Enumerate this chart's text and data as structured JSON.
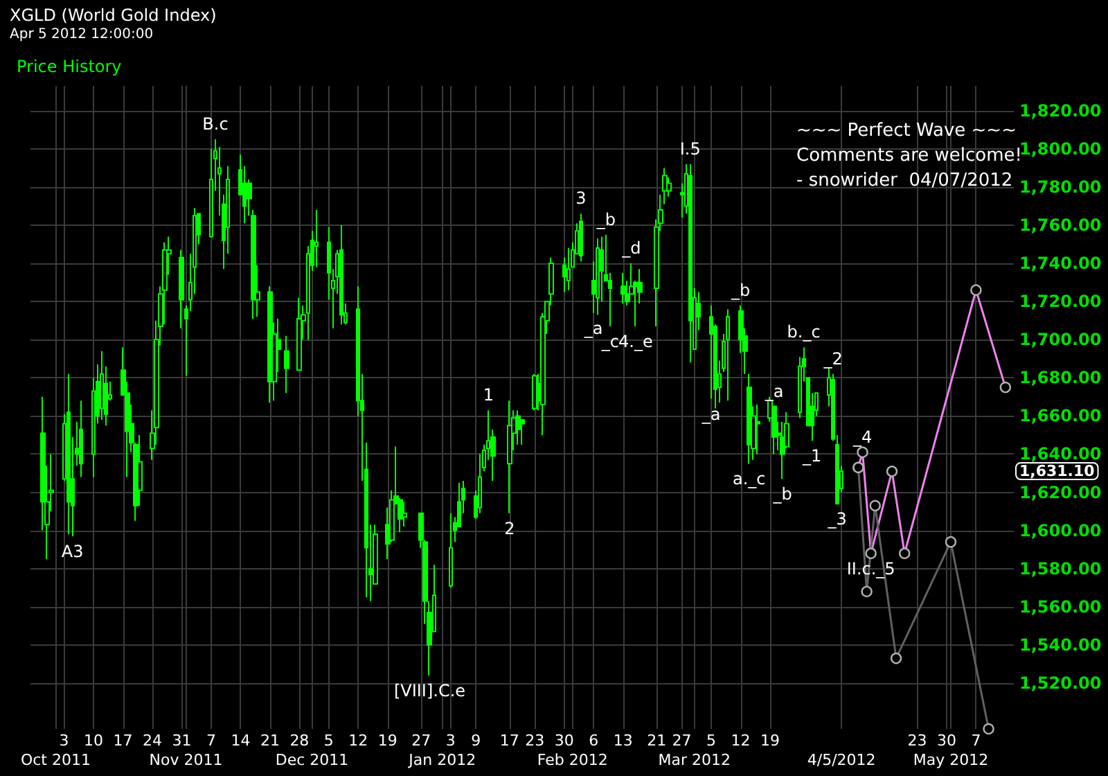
{
  "chart_data": {
    "type": "candlestick",
    "title": "XGLD (World Gold Index)",
    "subtitle": "Apr 5 2012 12:00:00",
    "series": [
      {
        "name": "Price History",
        "color": "#00ff00",
        "x": [
          "2011-09-28",
          "2011-09-29",
          "2011-09-30",
          "2011-10-03",
          "2011-10-04",
          "2011-10-05",
          "2011-10-06",
          "2011-10-07",
          "2011-10-10",
          "2011-10-11",
          "2011-10-12",
          "2011-10-13",
          "2011-10-14",
          "2011-10-17",
          "2011-10-18",
          "2011-10-19",
          "2011-10-20",
          "2011-10-21",
          "2011-10-24",
          "2011-10-25",
          "2011-10-26",
          "2011-10-27",
          "2011-10-28",
          "2011-10-31",
          "2011-11-01",
          "2011-11-02",
          "2011-11-03",
          "2011-11-04",
          "2011-11-07",
          "2011-11-08",
          "2011-11-09",
          "2011-11-10",
          "2011-11-11",
          "2011-11-14",
          "2011-11-15",
          "2011-11-16",
          "2011-11-17",
          "2011-11-18",
          "2011-11-21",
          "2011-11-22",
          "2011-11-23",
          "2011-11-25",
          "2011-11-28",
          "2011-11-29",
          "2011-11-30",
          "2011-12-01",
          "2011-12-02",
          "2011-12-05",
          "2011-12-06",
          "2011-12-07",
          "2011-12-08",
          "2011-12-09",
          "2011-12-12",
          "2011-12-13",
          "2011-12-14",
          "2011-12-15",
          "2011-12-16",
          "2011-12-19",
          "2011-12-20",
          "2011-12-21",
          "2011-12-22",
          "2011-12-23",
          "2011-12-27",
          "2011-12-28",
          "2011-12-29",
          "2011-12-30",
          "2012-01-03",
          "2012-01-04",
          "2012-01-05",
          "2012-01-06",
          "2012-01-09",
          "2012-01-10",
          "2012-01-11",
          "2012-01-12",
          "2012-01-13",
          "2012-01-17",
          "2012-01-18",
          "2012-01-19",
          "2012-01-20",
          "2012-01-23",
          "2012-01-24",
          "2012-01-25",
          "2012-01-26",
          "2012-01-27",
          "2012-01-30",
          "2012-01-31",
          "2012-02-01",
          "2012-02-02",
          "2012-02-03",
          "2012-02-06",
          "2012-02-07",
          "2012-02-08",
          "2012-02-09",
          "2012-02-10",
          "2012-02-13",
          "2012-02-14",
          "2012-02-15",
          "2012-02-16",
          "2012-02-17",
          "2012-02-21",
          "2012-02-22",
          "2012-02-23",
          "2012-02-24",
          "2012-02-27",
          "2012-02-28",
          "2012-02-29",
          "2012-03-01",
          "2012-03-02",
          "2012-03-05",
          "2012-03-06",
          "2012-03-07",
          "2012-03-08",
          "2012-03-09",
          "2012-03-12",
          "2012-03-13",
          "2012-03-14",
          "2012-03-15",
          "2012-03-16",
          "2012-03-19",
          "2012-03-20",
          "2012-03-21",
          "2012-03-22",
          "2012-03-23",
          "2012-03-26",
          "2012-03-27",
          "2012-03-28",
          "2012-03-29",
          "2012-03-30",
          "2012-04-02",
          "2012-04-03",
          "2012-04-04",
          "2012-04-05"
        ],
        "ohlc": [
          [
            1651,
            1670,
            1600,
            1615
          ],
          [
            1603,
            1634,
            1585,
            1615
          ],
          [
            1620,
            1640,
            1610,
            1621
          ],
          [
            1627,
            1661,
            1626,
            1656
          ],
          [
            1662,
            1682,
            1598,
            1615
          ],
          [
            1627,
            1649,
            1597,
            1613
          ],
          [
            1643,
            1657,
            1634,
            1640
          ],
          [
            1653,
            1668,
            1628,
            1635
          ],
          [
            1640,
            1680,
            1628,
            1673
          ],
          [
            1678,
            1687,
            1656,
            1660
          ],
          [
            1664,
            1694,
            1658,
            1682
          ],
          [
            1677,
            1686,
            1655,
            1661
          ],
          [
            1669,
            1678,
            1668,
            1671
          ],
          [
            1684,
            1696,
            1671,
            1671
          ],
          [
            1672,
            1678,
            1628,
            1652
          ],
          [
            1656,
            1666,
            1641,
            1646
          ],
          [
            1645,
            1646,
            1605,
            1613
          ],
          [
            1621,
            1650,
            1613,
            1636
          ],
          [
            1643,
            1663,
            1637,
            1651
          ],
          [
            1654,
            1710,
            1645,
            1700
          ],
          [
            1707,
            1728,
            1697,
            1724
          ],
          [
            1726,
            1751,
            1708,
            1747
          ],
          [
            1745,
            1754,
            1734,
            1747
          ],
          [
            1743,
            1747,
            1706,
            1721
          ],
          [
            1716,
            1718,
            1681,
            1711
          ],
          [
            1721,
            1745,
            1715,
            1730
          ],
          [
            1738,
            1769,
            1724,
            1765
          ],
          [
            1766,
            1766,
            1750,
            1755
          ],
          [
            1754,
            1800,
            1754,
            1784
          ],
          [
            1795,
            1805,
            1778,
            1799
          ],
          [
            1787,
            1801,
            1765,
            1790
          ],
          [
            1771,
            1776,
            1737,
            1752
          ],
          [
            1759,
            1791,
            1745,
            1784
          ],
          [
            1789,
            1797,
            1776,
            1776
          ],
          [
            1782,
            1791,
            1761,
            1770
          ],
          [
            1782,
            1784,
            1765,
            1774
          ],
          [
            1765,
            1768,
            1711,
            1721
          ],
          [
            1721,
            1739,
            1712,
            1725
          ],
          [
            1725,
            1728,
            1667,
            1678
          ],
          [
            1678,
            1709,
            1668,
            1703
          ],
          [
            1700,
            1711,
            1683,
            1695
          ],
          [
            1694,
            1702,
            1672,
            1685
          ],
          [
            1684,
            1722,
            1684,
            1711
          ],
          [
            1710,
            1718,
            1700,
            1713
          ],
          [
            1714,
            1749,
            1700,
            1745
          ],
          [
            1752,
            1757,
            1736,
            1739
          ],
          [
            1749,
            1768,
            1738,
            1751
          ],
          [
            1751,
            1759,
            1721,
            1735
          ],
          [
            1727,
            1737,
            1706,
            1731
          ],
          [
            1733,
            1747,
            1724,
            1745
          ],
          [
            1747,
            1760,
            1708,
            1713
          ],
          [
            1709,
            1719,
            1708,
            1714
          ],
          [
            1716,
            1728,
            1660,
            1668
          ],
          [
            1668,
            1682,
            1626,
            1663
          ],
          [
            1632,
            1646,
            1565,
            1591
          ],
          [
            1580,
            1603,
            1563,
            1577
          ],
          [
            1572,
            1603,
            1572,
            1598
          ],
          [
            1603,
            1612,
            1585,
            1593
          ],
          [
            1595,
            1621,
            1594,
            1616
          ],
          [
            1618,
            1644,
            1614,
            1614
          ],
          [
            1616,
            1617,
            1599,
            1606
          ],
          [
            1607,
            1615,
            1602,
            1609
          ],
          [
            1609,
            1609,
            1591,
            1595
          ],
          [
            1594,
            1595,
            1551,
            1563
          ],
          [
            1557,
            1563,
            1524,
            1540
          ],
          [
            1547,
            1582,
            1547,
            1566
          ],
          [
            1571,
            1609,
            1570,
            1591
          ],
          [
            1604,
            1607,
            1594,
            1600
          ],
          [
            1615,
            1625,
            1602,
            1602
          ],
          [
            1622,
            1626,
            1609,
            1616
          ],
          [
            1618,
            1621,
            1606,
            1607
          ],
          [
            1612,
            1640,
            1609,
            1628
          ],
          [
            1633,
            1645,
            1631,
            1642
          ],
          [
            1643,
            1663,
            1637,
            1647
          ],
          [
            1649,
            1653,
            1626,
            1639
          ],
          [
            1635,
            1668,
            1609,
            1655
          ],
          [
            1651,
            1663,
            1642,
            1659
          ],
          [
            1660,
            1663,
            1645,
            1653
          ],
          [
            1658,
            1658,
            1645,
            1656
          ],
          [
            1664,
            1682,
            1663,
            1681
          ],
          [
            1677,
            1682,
            1663,
            1668
          ],
          [
            1666,
            1714,
            1650,
            1712
          ],
          [
            1710,
            1720,
            1703,
            1720
          ],
          [
            1724,
            1743,
            1718,
            1740
          ],
          [
            1739,
            1743,
            1725,
            1733
          ],
          [
            1731,
            1748,
            1726,
            1737
          ],
          [
            1738,
            1751,
            1738,
            1747
          ],
          [
            1745,
            1761,
            1745,
            1757
          ],
          [
            1762,
            1766,
            1741,
            1744
          ],
          [
            1731,
            1741,
            1714,
            1724
          ],
          [
            1722,
            1753,
            1713,
            1748
          ],
          [
            1747,
            1754,
            1720,
            1736
          ],
          [
            1734,
            1755,
            1731,
            1731
          ],
          [
            1731,
            1735,
            1707,
            1727
          ],
          [
            1728,
            1735,
            1719,
            1724
          ],
          [
            1724,
            1731,
            1718,
            1720
          ],
          [
            1724,
            1740,
            1724,
            1728
          ],
          [
            1730,
            1731,
            1707,
            1728
          ],
          [
            1730,
            1737,
            1719,
            1725
          ],
          [
            1727,
            1763,
            1707,
            1759
          ],
          [
            1761,
            1776,
            1757,
            1768
          ],
          [
            1778,
            1790,
            1771,
            1786
          ],
          [
            1778,
            1785,
            1775,
            1782
          ],
          [
            1777,
            1782,
            1764,
            1776
          ],
          [
            1770,
            1792,
            1766,
            1787
          ],
          [
            1786,
            1792,
            1688,
            1710
          ],
          [
            1695,
            1727,
            1695,
            1722
          ],
          [
            1719,
            1725,
            1705,
            1712
          ],
          [
            1712,
            1718,
            1669,
            1703
          ],
          [
            1707,
            1708,
            1664,
            1674
          ],
          [
            1675,
            1689,
            1667,
            1682
          ],
          [
            1685,
            1703,
            1683,
            1699
          ],
          [
            1700,
            1716,
            1668,
            1712
          ],
          [
            1715,
            1718,
            1693,
            1700
          ],
          [
            1702,
            1706,
            1682,
            1694
          ],
          [
            1675,
            1682,
            1635,
            1645
          ],
          [
            1643,
            1665,
            1637,
            1660
          ],
          [
            1657,
            1666,
            1640,
            1656
          ],
          [
            1659,
            1670,
            1657,
            1668
          ],
          [
            1665,
            1665,
            1640,
            1649
          ],
          [
            1651,
            1657,
            1642,
            1650
          ],
          [
            1649,
            1657,
            1627,
            1640
          ],
          [
            1644,
            1662,
            1643,
            1656
          ],
          [
            1662,
            1691,
            1659,
            1686
          ],
          [
            1690,
            1696,
            1678,
            1686
          ],
          [
            1680,
            1680,
            1655,
            1655
          ],
          [
            1665,
            1672,
            1647,
            1655
          ],
          [
            1663,
            1672,
            1660,
            1672
          ],
          [
            1671,
            1685,
            1665,
            1680
          ],
          [
            1679,
            1682,
            1647,
            1648
          ],
          [
            1645,
            1650,
            1614,
            1614
          ],
          [
            1622,
            1634,
            1620,
            1631.1
          ]
        ]
      },
      {
        "type": "line",
        "color": "#ee82ee",
        "x": [
          "2012-04-09",
          "2012-04-10",
          "2012-04-12",
          "2012-04-17",
          "2012-04-20",
          "2012-05-07",
          "2012-05-14"
        ],
        "values": [
          1633,
          1641,
          1588,
          1631,
          1588,
          1726,
          1675
        ]
      },
      {
        "type": "line",
        "color": "#606060",
        "x": [
          "2012-04-09",
          "2012-04-11",
          "2012-04-13",
          "2012-04-18",
          "2012-05-01",
          "2012-05-10"
        ],
        "values": [
          1633,
          1568,
          1613,
          1533,
          1594,
          1496
        ]
      }
    ],
    "xlim": [
      "2011-09-25",
      "2012-05-16"
    ],
    "xticks": [
      {
        "value": "2011-10-03",
        "label": "3"
      },
      {
        "value": "2011-10-10",
        "label": "10"
      },
      {
        "value": "2011-10-17",
        "label": "17"
      },
      {
        "value": "2011-10-24",
        "label": "24"
      },
      {
        "value": "2011-10-31",
        "label": "31"
      },
      {
        "value": "2011-11-07",
        "label": "7"
      },
      {
        "value": "2011-11-14",
        "label": "14"
      },
      {
        "value": "2011-11-21",
        "label": "21"
      },
      {
        "value": "2011-11-28",
        "label": "28"
      },
      {
        "value": "2011-12-05",
        "label": "5"
      },
      {
        "value": "2011-12-12",
        "label": "12"
      },
      {
        "value": "2011-12-19",
        "label": "19"
      },
      {
        "value": "2011-12-27",
        "label": "27"
      },
      {
        "value": "2012-01-03",
        "label": "3"
      },
      {
        "value": "2012-01-09",
        "label": "9"
      },
      {
        "value": "2012-01-17",
        "label": "17"
      },
      {
        "value": "2012-01-23",
        "label": "23"
      },
      {
        "value": "2012-01-30",
        "label": "30"
      },
      {
        "value": "2012-02-06",
        "label": "6"
      },
      {
        "value": "2012-02-13",
        "label": "13"
      },
      {
        "value": "2012-02-21",
        "label": "21"
      },
      {
        "value": "2012-02-27",
        "label": "27"
      },
      {
        "value": "2012-03-05",
        "label": "5"
      },
      {
        "value": "2012-03-12",
        "label": "12"
      },
      {
        "value": "2012-03-19",
        "label": "19"
      },
      {
        "value": "2012-04-23",
        "label": "23"
      },
      {
        "value": "2012-04-30",
        "label": "30"
      },
      {
        "value": "2012-05-07",
        "label": "7"
      }
    ],
    "x2lim": [
      "2011-09-25",
      "2012-05-16"
    ],
    "x2ticks": [
      {
        "value": "2011-10-01",
        "label": "Oct 2011"
      },
      {
        "value": "2011-11-01",
        "label": "Nov 2011"
      },
      {
        "value": "2011-12-01",
        "label": "Dec 2011"
      },
      {
        "value": "2012-01-01",
        "label": "Jan 2012"
      },
      {
        "value": "2012-02-01",
        "label": "Feb 2012"
      },
      {
        "value": "2012-03-01",
        "label": "Mar 2012"
      },
      {
        "value": "2012-04-05",
        "label": "4/5/2012"
      },
      {
        "value": "2012-05-01",
        "label": "May 2012"
      }
    ],
    "ylim": [
      1496,
      1833
    ],
    "yticks": [
      {
        "value": 1520,
        "label": "1,520.00"
      },
      {
        "value": 1540,
        "label": "1,540.00"
      },
      {
        "value": 1560,
        "label": "1,560.00"
      },
      {
        "value": 1580,
        "label": "1,580.00"
      },
      {
        "value": 1600,
        "label": "1,600.00"
      },
      {
        "value": 1620,
        "label": "1,620.00"
      },
      {
        "value": 1640,
        "label": "1,640.00"
      },
      {
        "value": 1660,
        "label": "1,660.00"
      },
      {
        "value": 1680,
        "label": "1,680.00"
      },
      {
        "value": 1700,
        "label": "1,700.00"
      },
      {
        "value": 1720,
        "label": "1,720.00"
      },
      {
        "value": 1740,
        "label": "1,740.00"
      },
      {
        "value": 1760,
        "label": "1,760.00"
      },
      {
        "value": 1780,
        "label": "1,780.00"
      },
      {
        "value": 1800,
        "label": "1,800.00"
      },
      {
        "value": 1820,
        "label": "1,820.00"
      }
    ],
    "grid": true,
    "legend": "top left",
    "marker": "circle",
    "annotations": [
      "~~~ Perfect Wave ~~~",
      "Comments are welcome!",
      "- snowrider  04/07/2012",
      "1,631.10",
      {
        "text": "A3",
        "x": "2011-10-05",
        "y": 1597
      },
      {
        "text": "B.c",
        "x": "2011-11-08",
        "y": 1805
      },
      {
        "text": "[VIII].C.e",
        "x": "2011-12-29",
        "y": 1524
      },
      {
        "text": "1",
        "x": "2012-01-12",
        "y": 1663
      },
      {
        "text": "2",
        "x": "2012-01-17",
        "y": 1609
      },
      {
        "text": "3",
        "x": "2012-02-03",
        "y": 1766
      },
      {
        "text": "_a",
        "x": "2012-02-06",
        "y": 1714
      },
      {
        "text": "_b",
        "x": "2012-02-09",
        "y": 1755
      },
      {
        "text": "_c",
        "x": "2012-02-10",
        "y": 1707
      },
      {
        "text": "_d",
        "x": "2012-02-15",
        "y": 1740
      },
      {
        "text": "4._e",
        "x": "2012-02-16",
        "y": 1707
      },
      {
        "text": "I.5",
        "x": "2012-02-29",
        "y": 1792
      },
      {
        "text": "_a",
        "x": "2012-03-05",
        "y": 1669
      },
      {
        "text": "_b",
        "x": "2012-03-12",
        "y": 1718
      },
      {
        "text": "a._c",
        "x": "2012-03-14",
        "y": 1635
      },
      {
        "text": "_a",
        "x": "2012-03-20",
        "y": 1665
      },
      {
        "text": "_b",
        "x": "2012-03-22",
        "y": 1627
      },
      {
        "text": "b._c",
        "x": "2012-03-27",
        "y": 1696
      },
      {
        "text": "_1",
        "x": "2012-03-29",
        "y": 1647
      },
      {
        "text": "_2",
        "x": "2012-04-03",
        "y": 1682
      },
      {
        "text": "_3",
        "x": "2012-04-04",
        "y": 1614
      },
      {
        "text": "_4",
        "x": "2012-04-10",
        "y": 1641
      },
      {
        "text": "II.c._5",
        "x": "2012-04-12",
        "y": 1588
      }
    ]
  }
}
